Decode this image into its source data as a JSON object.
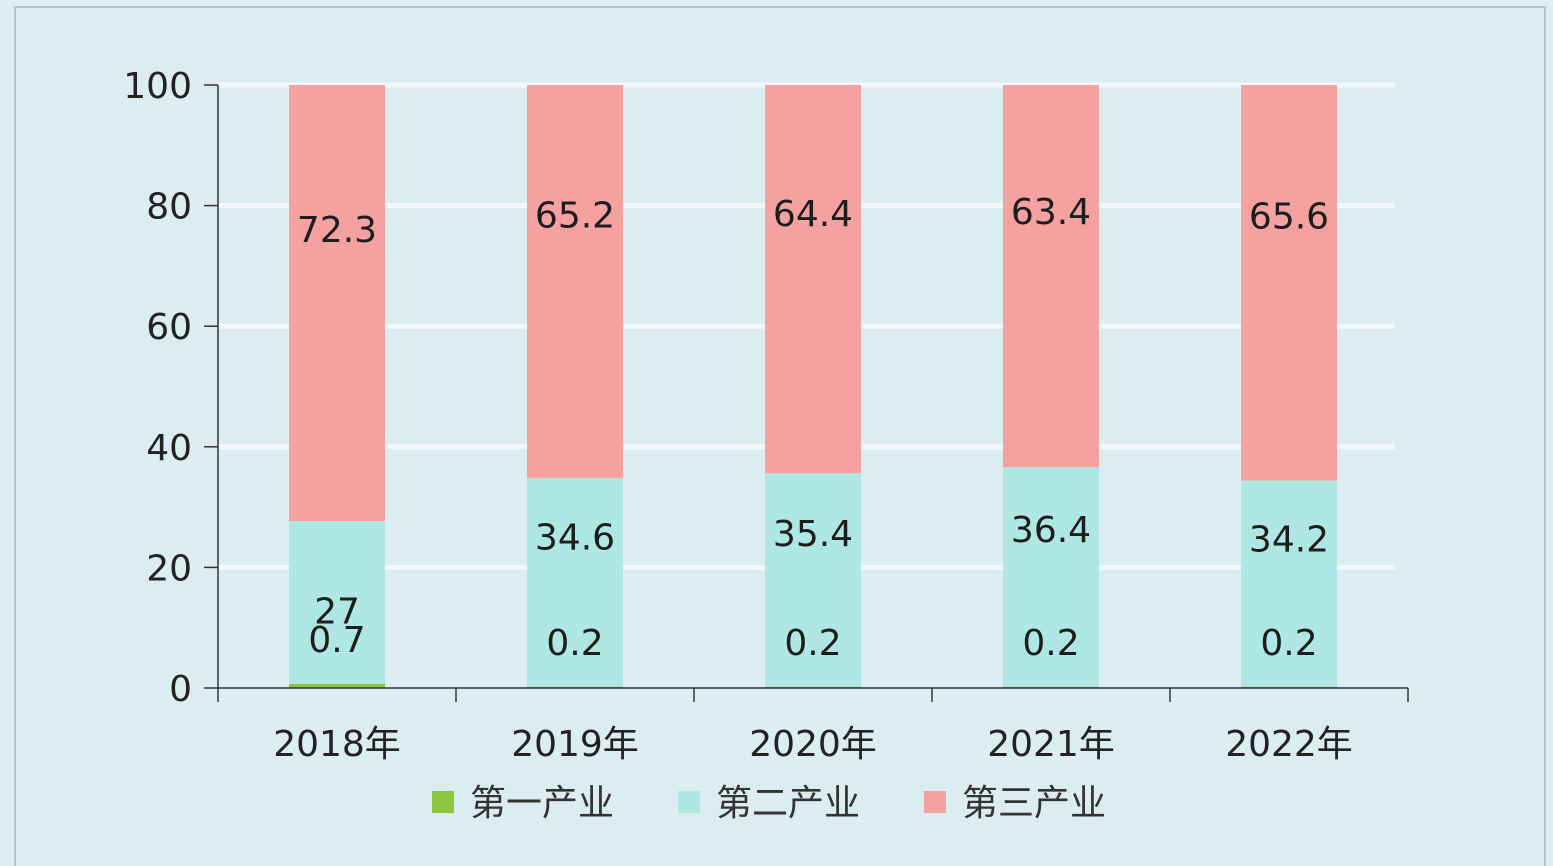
{
  "chart_data": {
    "type": "bar",
    "stacked": true,
    "categories": [
      "2018年",
      "2019年",
      "2020年",
      "2021年",
      "2022年"
    ],
    "series": [
      {
        "name": "第一产业",
        "values": [
          0.7,
          0.2,
          0.2,
          0.2,
          0.2
        ],
        "color": "#8dc63f"
      },
      {
        "name": "第二产业",
        "values": [
          27,
          34.6,
          35.4,
          36.4,
          34.2
        ],
        "color": "#aee7e3"
      },
      {
        "name": "第三产业",
        "values": [
          72.3,
          65.2,
          64.4,
          63.4,
          65.6
        ],
        "color": "#f5a1a0"
      }
    ],
    "data_labels": {
      "第一产业": [
        "0.7",
        "0.2",
        "0.2",
        "0.2",
        "0.2"
      ],
      "第二产业": [
        "27",
        "34.6",
        "35.4",
        "36.4",
        "34.2"
      ],
      "第三产业": [
        "72.3",
        "65.2",
        "64.4",
        "63.4",
        "65.6"
      ]
    },
    "ylim": [
      0,
      100
    ],
    "yticks": [
      0,
      20,
      40,
      60,
      80,
      100
    ],
    "grid": true,
    "legend_position": "bottom-center",
    "title": "",
    "xlabel": "",
    "ylabel": ""
  },
  "colors": {
    "background": "#dcedf2",
    "gridline": "#f3f9fb",
    "axis": "#333333"
  }
}
